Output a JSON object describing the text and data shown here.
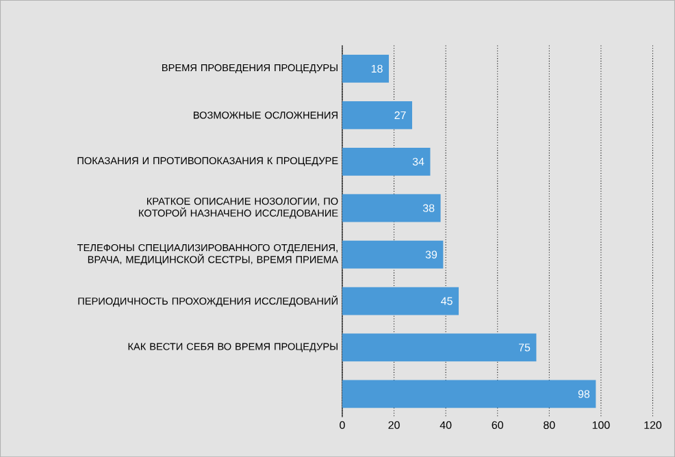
{
  "chart_data": {
    "type": "bar",
    "orientation": "horizontal",
    "categories": [
      "ВРЕМЯ ПРОВЕДЕНИЯ ПРОЦЕДУРЫ",
      "ВОЗМОЖНЫЕ ОСЛОЖНЕНИЯ",
      "ПОКАЗАНИЯ И ПРОТИВОПОКАЗАНИЯ К ПРОЦЕДУРЕ",
      "КРАТКОЕ ОПИСАНИЕ НОЗОЛОГИИ, ПО КОТОРОЙ НАЗНАЧЕНО ИССЛЕДОВАНИЕ",
      "ТЕЛЕФОНЫ СПЕЦИАЛИЗИРОВАННОГО ОТДЕЛЕНИЯ, ВРАЧА, МЕДИЦИНСКОЙ СЕСТРЫ, ВРЕМЯ ПРИЕМА",
      "ПЕРИОДИЧНОСТЬ ПРОХОЖДЕНИЯ ИССЛЕДОВАНИЙ",
      "КАК ВЕСТИ СЕБЯ ВО ВРЕМЯ ПРОЦЕДУРЫ",
      null
    ],
    "values": [
      18,
      27,
      34,
      38,
      39,
      45,
      75,
      98
    ],
    "color": "#4a9ad8",
    "xlim": [
      0,
      120
    ],
    "xticks": [
      0,
      20,
      40,
      60,
      80,
      100,
      120
    ],
    "grid": "x",
    "data_labels": true
  }
}
